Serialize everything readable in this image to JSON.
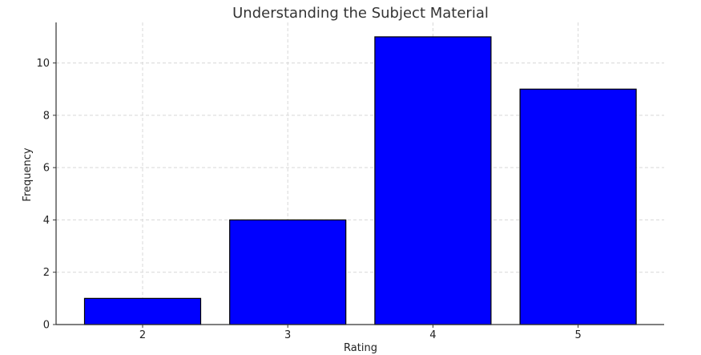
{
  "chart_data": {
    "type": "bar",
    "title": "Understanding the Subject Material",
    "xlabel": "Rating",
    "ylabel": "Frequency",
    "categories": [
      "2",
      "3",
      "4",
      "5"
    ],
    "values": [
      1,
      4,
      11,
      9
    ],
    "ylim": [
      0,
      11.55
    ],
    "yticks": [
      0,
      2,
      4,
      6,
      8,
      10
    ],
    "bar_color": "#0000ff",
    "bar_edge_color": "#000000",
    "grid": true
  }
}
